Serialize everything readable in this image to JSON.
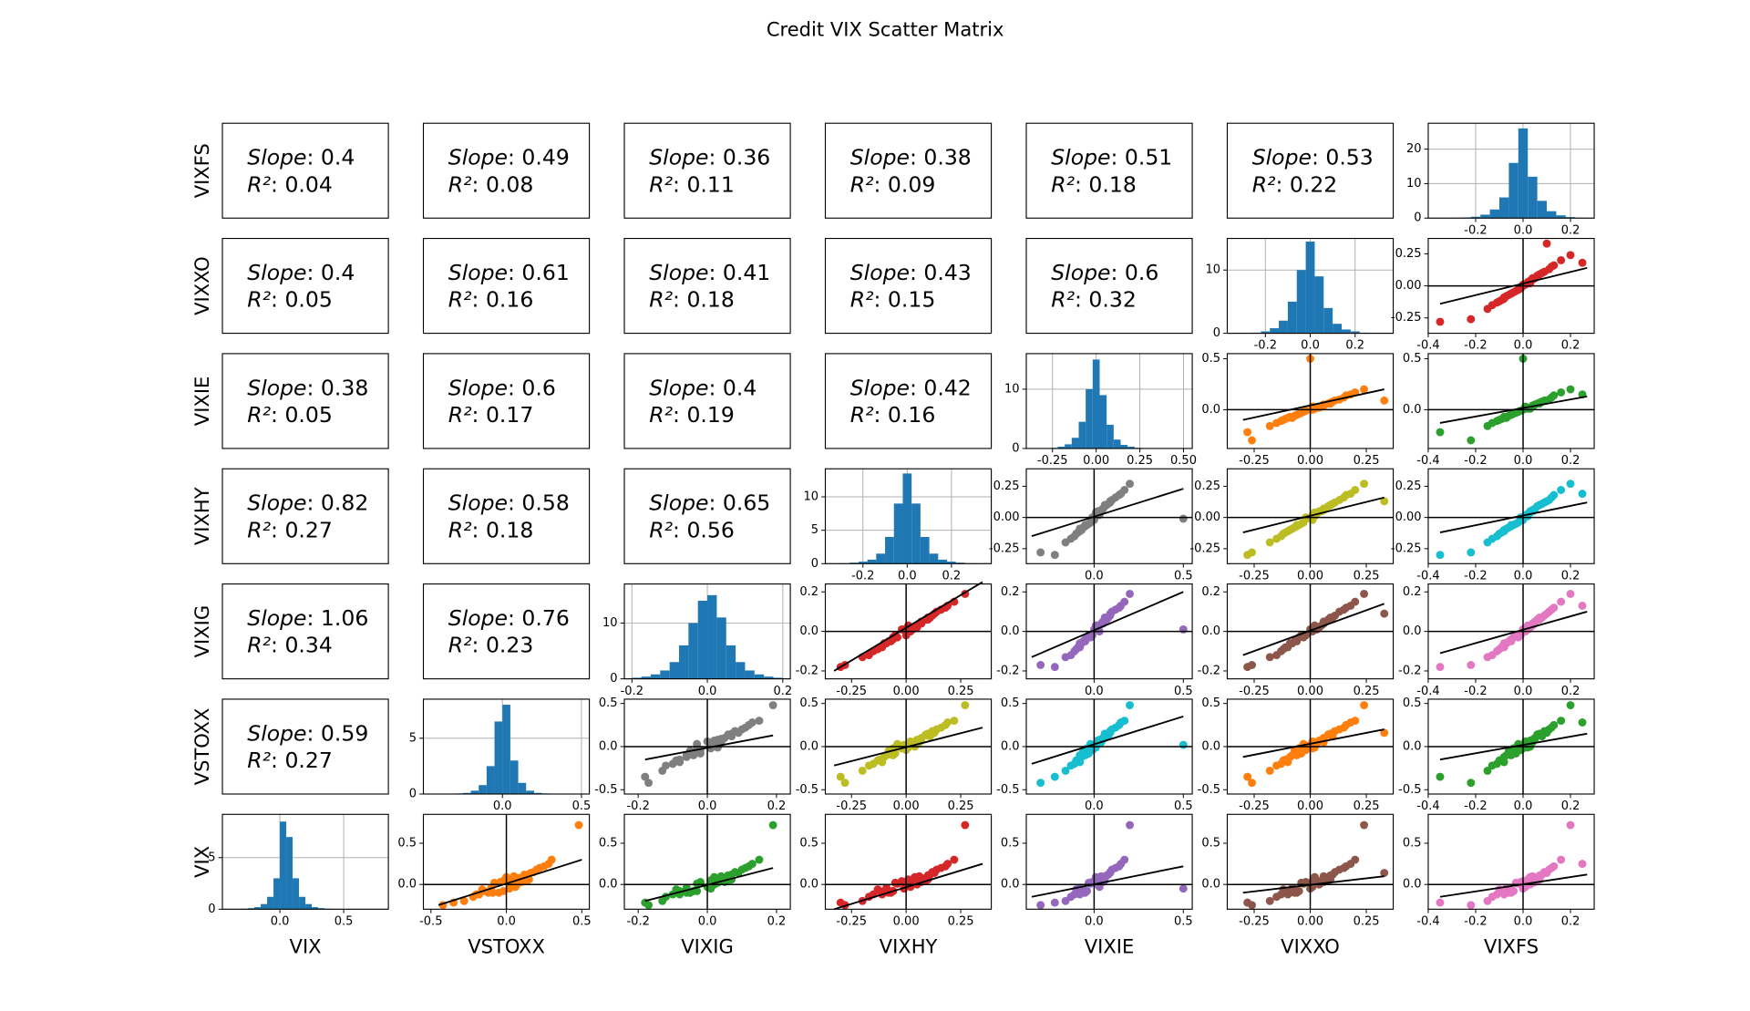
{
  "title": "Credit VIX Scatter Matrix",
  "variables": [
    "VIX",
    "VSTOXX",
    "VIXIG",
    "VIXHY",
    "VIXIE",
    "VIXXO",
    "VIXFS"
  ],
  "stat_text": {
    "slope": "Slope",
    "r2": "R²",
    "sep": ": "
  },
  "reference_lines": {
    "x": 0,
    "y": 0
  },
  "axes": [
    {
      "lim": [
        -0.3,
        0.85
      ],
      "ticks": [
        {
          "value": 0,
          "label": "0.0"
        },
        0.5
      ]
    },
    {
      "lim": [
        -0.55,
        0.55
      ],
      "ticks": [
        -0.5,
        {
          "value": 0,
          "label": "0.0"
        },
        0.5
      ]
    },
    {
      "lim": [
        -0.24,
        0.24
      ],
      "ticks": [
        -0.2,
        {
          "value": 0,
          "label": "0.0"
        },
        0.2
      ]
    },
    {
      "lim": [
        -0.37,
        0.39
      ],
      "ticks": [
        -0.25,
        {
          "value": 0,
          "label": "0.00"
        },
        0.25
      ]
    },
    {
      "lim": [
        -0.38,
        0.55
      ],
      "ticks": [
        {
          "value": 0,
          "label": "0.0"
        },
        0.5
      ]
    },
    {
      "lim": [
        -0.37,
        0.37
      ],
      "ticks": [
        -0.25,
        {
          "value": 0,
          "label": "0.00"
        },
        0.25
      ]
    },
    {
      "lim": [
        -0.4,
        0.3
      ],
      "ticks": [
        -0.4,
        -0.2,
        {
          "value": 0,
          "label": "0.0"
        },
        0.2
      ]
    }
  ],
  "data": [
    [
      0.05,
      -0.08,
      0.15,
      -0.12,
      0.02,
      0.04,
      0.22,
      -0.1,
      0.03,
      0.01,
      0.18,
      -0.2,
      0.09,
      0.06,
      -0.1,
      -0.03,
      -0.08,
      0.3,
      0.02,
      0.1,
      0.12,
      -0.25,
      0.05,
      0.03,
      0.2,
      -0.04,
      -0.05,
      0.14,
      -0.08,
      0.72,
      -0.12,
      0.08,
      -0.15,
      0.0,
      0.25,
      -0.06,
      0.06,
      -0.1,
      0.11,
      -0.22
    ],
    [
      0.04,
      -0.1,
      0.18,
      -0.2,
      0.08,
      -0.02,
      0.25,
      -0.12,
      0.1,
      0.03,
      0.2,
      -0.28,
      0.0,
      0.15,
      -0.05,
      0.06,
      -0.15,
      0.3,
      -0.08,
      0.05,
      0.12,
      -0.42,
      0.14,
      -0.04,
      0.22,
      -0.1,
      0.02,
      0.16,
      -0.02,
      0.48,
      -0.18,
      0.09,
      -0.22,
      0.07,
      0.28,
      -0.16,
      -0.01,
      -0.09,
      0.13,
      -0.35
    ],
    [
      0.01,
      -0.04,
      0.08,
      -0.1,
      0.03,
      0.01,
      0.12,
      -0.06,
      0.05,
      -0.03,
      0.1,
      -0.13,
      0.02,
      0.07,
      -0.05,
      0.0,
      -0.08,
      0.15,
      -0.02,
      0.04,
      0.07,
      -0.17,
      0.06,
      -0.02,
      0.11,
      -0.06,
      0.01,
      0.09,
      -0.03,
      0.19,
      -0.08,
      0.04,
      -0.12,
      0.02,
      0.13,
      -0.09,
      0.03,
      -0.05,
      0.06,
      -0.18
    ],
    [
      0.03,
      -0.06,
      0.12,
      -0.15,
      0.05,
      -0.02,
      0.18,
      -0.1,
      0.07,
      -0.04,
      0.14,
      -0.2,
      0.04,
      0.1,
      -0.08,
      0.02,
      -0.12,
      0.22,
      -0.05,
      0.06,
      0.11,
      -0.28,
      0.09,
      0.0,
      0.16,
      -0.09,
      -0.01,
      0.13,
      -0.06,
      0.27,
      -0.11,
      0.07,
      -0.17,
      0.05,
      0.19,
      -0.13,
      0.01,
      -0.07,
      0.1,
      -0.3
    ],
    [
      0.02,
      -0.05,
      0.09,
      -0.11,
      0.03,
      0.0,
      0.14,
      -0.07,
      0.05,
      -0.02,
      0.1,
      -0.16,
      0.01,
      0.06,
      -0.06,
      0.03,
      -0.09,
      0.17,
      -0.03,
      0.04,
      0.08,
      -0.3,
      0.06,
      -0.01,
      0.12,
      -0.08,
      0.5,
      0.09,
      -0.04,
      0.2,
      -0.08,
      0.05,
      -0.13,
      0.02,
      0.15,
      -0.1,
      0.01,
      -0.05,
      0.07,
      -0.22
    ],
    [
      0.03,
      -0.06,
      0.11,
      -0.13,
      0.05,
      0.01,
      0.16,
      -0.09,
      0.06,
      -0.03,
      0.13,
      -0.18,
      0.02,
      0.09,
      -0.07,
      0.01,
      -0.11,
      0.2,
      -0.04,
      0.06,
      0.1,
      -0.26,
      0.08,
      -0.02,
      0.15,
      -0.08,
      0.0,
      0.33,
      -0.05,
      0.24,
      -0.1,
      0.06,
      -0.15,
      0.04,
      0.18,
      -0.12,
      0.02,
      -0.06,
      0.09,
      -0.28
    ],
    [
      0.02,
      -0.05,
      0.09,
      -0.11,
      0.04,
      0.0,
      0.13,
      -0.08,
      0.05,
      -0.02,
      0.11,
      -0.15,
      0.03,
      0.07,
      -0.06,
      0.01,
      -0.09,
      0.16,
      -0.03,
      0.04,
      0.08,
      -0.22,
      0.06,
      -0.01,
      0.12,
      -0.07,
      0.0,
      0.1,
      -0.04,
      0.2,
      -0.08,
      0.05,
      -0.13,
      0.03,
      0.25,
      -0.1,
      0.02,
      -0.05,
      0.07,
      -0.35
    ]
  ],
  "chart_data": [
    [
      {
        "type": "text",
        "color": "#e377c2",
        "slope": 0.4,
        "r2": 0.04
      },
      {
        "type": "text",
        "color": "#2ca02c",
        "slope": 0.49,
        "r2": 0.08
      },
      {
        "type": "text",
        "color": "#e377c2",
        "slope": 0.36,
        "r2": 0.11
      },
      {
        "type": "text",
        "color": "#17becf",
        "slope": 0.38,
        "r2": 0.09
      },
      {
        "type": "text",
        "color": "#2ca02c",
        "slope": 0.51,
        "r2": 0.18
      },
      {
        "type": "text",
        "color": "#d62728",
        "slope": 0.53,
        "r2": 0.22
      },
      {
        "type": "histogram",
        "color": "#1f77b4",
        "grid": true,
        "bins": [
          -0.3,
          -0.26,
          -0.22,
          -0.18,
          -0.14,
          -0.1,
          -0.06,
          -0.02,
          0.02,
          0.06,
          0.1,
          0.14,
          0.18,
          0.22,
          0.26
        ],
        "counts": [
          0.1,
          0.2,
          0.4,
          1,
          2.5,
          6,
          16,
          26,
          12,
          5,
          2,
          0.8,
          0.3,
          0.1
        ],
        "xlim": [
          -0.4,
          0.3
        ],
        "xticks": [
          -0.2,
          {
            "value": 0,
            "label": "0.0"
          },
          0.2
        ],
        "ylim": [
          0,
          27.5
        ],
        "yticks": [
          0,
          10,
          20
        ]
      }
    ],
    [
      {
        "type": "text",
        "color": "#8c564b",
        "slope": 0.4,
        "r2": 0.05
      },
      {
        "type": "text",
        "color": "#ff7f0e",
        "slope": 0.61,
        "r2": 0.16
      },
      {
        "type": "text",
        "color": "#8c564b",
        "slope": 0.41,
        "r2": 0.18
      },
      {
        "type": "text",
        "color": "#bcbd22",
        "slope": 0.43,
        "r2": 0.15
      },
      {
        "type": "text",
        "color": "#ff7f0e",
        "slope": 0.6,
        "r2": 0.32
      },
      {
        "type": "histogram",
        "color": "#1f77b4",
        "grid": true,
        "bins": [
          -0.3,
          -0.26,
          -0.22,
          -0.18,
          -0.14,
          -0.1,
          -0.06,
          -0.02,
          0.02,
          0.06,
          0.1,
          0.14,
          0.18,
          0.22,
          0.26,
          0.3
        ],
        "counts": [
          0.05,
          0.1,
          0.3,
          0.8,
          2,
          5,
          10,
          14.5,
          9,
          4,
          1.5,
          0.6,
          0.3,
          0.1,
          0.05
        ],
        "xlim": [
          -0.37,
          0.37
        ],
        "xticks": [
          -0.2,
          {
            "value": 0,
            "label": "0.0"
          },
          0.2
        ],
        "ylim": [
          0,
          15
        ],
        "yticks": [
          0,
          10
        ]
      },
      {
        "type": "scatter",
        "color": "#d62728",
        "fit": {
          "x": [
            -0.35,
            0.27
          ],
          "y": [
            -0.14,
            0.14
          ]
        }
      }
    ],
    [
      {
        "type": "text",
        "color": "#9467bd",
        "slope": 0.38,
        "r2": 0.05
      },
      {
        "type": "text",
        "color": "#17becf",
        "slope": 0.6,
        "r2": 0.17
      },
      {
        "type": "text",
        "color": "#9467bd",
        "slope": 0.4,
        "r2": 0.19
      },
      {
        "type": "text",
        "color": "#7f7f7f",
        "slope": 0.42,
        "r2": 0.16
      },
      {
        "type": "histogram",
        "color": "#1f77b4",
        "grid": true,
        "bins": [
          -0.3,
          -0.26,
          -0.22,
          -0.18,
          -0.14,
          -0.1,
          -0.06,
          -0.02,
          0.02,
          0.06,
          0.1,
          0.14,
          0.18,
          0.22,
          0.26,
          0.3
        ],
        "counts": [
          0.05,
          0.1,
          0.3,
          0.7,
          1.8,
          4.5,
          10,
          15,
          9,
          4,
          1.5,
          0.6,
          0.3,
          0.1,
          0.05
        ],
        "xlim": [
          -0.4,
          0.55
        ],
        "xticks": [
          -0.25,
          {
            "value": 0,
            "label": "0.00"
          },
          0.25,
          {
            "value": 0.5,
            "label": "0.50"
          }
        ],
        "ylim": [
          0,
          16
        ],
        "yticks": [
          0,
          10
        ]
      },
      {
        "type": "scatter",
        "color": "#ff7f0e",
        "fit": {
          "x": [
            -0.3,
            0.33
          ],
          "y": [
            -0.1,
            0.2
          ]
        }
      },
      {
        "type": "scatter",
        "color": "#2ca02c",
        "fit": {
          "x": [
            -0.35,
            0.27
          ],
          "y": [
            -0.13,
            0.13
          ]
        }
      }
    ],
    [
      {
        "type": "text",
        "color": "#d62728",
        "slope": 0.82,
        "r2": 0.27
      },
      {
        "type": "text",
        "color": "#bcbd22",
        "slope": 0.58,
        "r2": 0.18
      },
      {
        "type": "text",
        "color": "#d62728",
        "slope": 0.65,
        "r2": 0.56
      },
      {
        "type": "histogram",
        "color": "#1f77b4",
        "grid": true,
        "bins": [
          -0.3,
          -0.26,
          -0.22,
          -0.18,
          -0.14,
          -0.1,
          -0.06,
          -0.02,
          0.02,
          0.06,
          0.1,
          0.14,
          0.18,
          0.22,
          0.26,
          0.3
        ],
        "counts": [
          0.05,
          0.15,
          0.3,
          0.6,
          1.5,
          4,
          9,
          13.5,
          9,
          4,
          1.5,
          0.6,
          0.3,
          0.15,
          0.05
        ],
        "xlim": [
          -0.37,
          0.38
        ],
        "xticks": [
          -0.2,
          {
            "value": 0,
            "label": "0.0"
          },
          0.2
        ],
        "ylim": [
          0,
          14.2
        ],
        "yticks": [
          0,
          5,
          10
        ]
      },
      {
        "type": "scatter",
        "color": "#7f7f7f",
        "fit": {
          "x": [
            -0.35,
            0.5
          ],
          "y": [
            -0.15,
            0.23
          ]
        }
      },
      {
        "type": "scatter",
        "color": "#bcbd22",
        "fit": {
          "x": [
            -0.3,
            0.33
          ],
          "y": [
            -0.12,
            0.16
          ]
        }
      },
      {
        "type": "scatter",
        "color": "#17becf",
        "fit": {
          "x": [
            -0.35,
            0.27
          ],
          "y": [
            -0.12,
            0.12
          ]
        }
      }
    ],
    [
      {
        "type": "text",
        "color": "#2ca02c",
        "slope": 1.06,
        "r2": 0.34
      },
      {
        "type": "text",
        "color": "#7f7f7f",
        "slope": 0.76,
        "r2": 0.23
      },
      {
        "type": "histogram",
        "color": "#1f77b4",
        "grid": true,
        "bins": [
          -0.2,
          -0.175,
          -0.15,
          -0.125,
          -0.1,
          -0.075,
          -0.05,
          -0.025,
          0,
          0.025,
          0.05,
          0.075,
          0.1,
          0.125,
          0.15,
          0.175,
          0.2
        ],
        "counts": [
          0.2,
          0.4,
          0.8,
          1.5,
          3,
          6,
          10,
          14,
          15,
          11,
          6,
          3,
          1.5,
          0.8,
          0.4,
          0.2
        ],
        "xlim": [
          -0.22,
          0.22
        ],
        "xticks": [
          -0.2,
          {
            "value": 0,
            "label": "0.0"
          },
          0.2
        ],
        "ylim": [
          0,
          17
        ],
        "yticks": [
          0,
          10
        ]
      },
      {
        "type": "scatter",
        "color": "#d62728",
        "fit": {
          "x": [
            -0.33,
            0.35
          ],
          "y": [
            -0.2,
            0.25
          ]
        }
      },
      {
        "type": "scatter",
        "color": "#9467bd",
        "fit": {
          "x": [
            -0.35,
            0.5
          ],
          "y": [
            -0.13,
            0.2
          ]
        }
      },
      {
        "type": "scatter",
        "color": "#8c564b",
        "fit": {
          "x": [
            -0.3,
            0.33
          ],
          "y": [
            -0.12,
            0.14
          ]
        }
      },
      {
        "type": "scatter",
        "color": "#e377c2",
        "fit": {
          "x": [
            -0.35,
            0.27
          ],
          "y": [
            -0.11,
            0.1
          ]
        }
      }
    ],
    [
      {
        "type": "text",
        "color": "#ff7f0e",
        "slope": 0.59,
        "r2": 0.27
      },
      {
        "type": "histogram",
        "color": "#1f77b4",
        "grid": true,
        "bins": [
          -0.3,
          -0.25,
          -0.2,
          -0.15,
          -0.1,
          -0.05,
          0,
          0.05,
          0.1,
          0.15,
          0.2,
          0.25,
          0.3
        ],
        "counts": [
          0.05,
          0.1,
          0.3,
          0.8,
          2.5,
          6.5,
          8,
          3,
          1,
          0.3,
          0.1,
          0.05
        ],
        "xlim": [
          -0.5,
          0.55
        ],
        "xticks": [
          {
            "value": 0,
            "label": "0.0"
          },
          0.5
        ],
        "ylim": [
          0,
          8.5
        ],
        "yticks": [
          0,
          5
        ]
      },
      {
        "type": "scatter",
        "color": "#7f7f7f",
        "fit": {
          "x": [
            -0.18,
            0.19
          ],
          "y": [
            -0.15,
            0.13
          ]
        }
      },
      {
        "type": "scatter",
        "color": "#bcbd22",
        "fit": {
          "x": [
            -0.33,
            0.35
          ],
          "y": [
            -0.22,
            0.22
          ]
        }
      },
      {
        "type": "scatter",
        "color": "#17becf",
        "fit": {
          "x": [
            -0.35,
            0.5
          ],
          "y": [
            -0.2,
            0.35
          ]
        }
      },
      {
        "type": "scatter",
        "color": "#ff7f0e",
        "fit": {
          "x": [
            -0.3,
            0.33
          ],
          "y": [
            -0.12,
            0.2
          ]
        }
      },
      {
        "type": "scatter",
        "color": "#2ca02c",
        "fit": {
          "x": [
            -0.35,
            0.27
          ],
          "y": [
            -0.15,
            0.15
          ]
        }
      }
    ],
    [
      {
        "type": "histogram",
        "color": "#1f77b4",
        "grid": true,
        "bins": [
          -0.3,
          -0.25,
          -0.2,
          -0.15,
          -0.1,
          -0.05,
          0,
          0.05,
          0.1,
          0.15,
          0.2,
          0.25,
          0.3,
          0.35,
          0.4
        ],
        "counts": [
          0.05,
          0.1,
          0.2,
          0.5,
          1.2,
          3,
          8.5,
          7,
          3,
          1.2,
          0.5,
          0.2,
          0.1,
          0.05
        ],
        "xlim": [
          -0.45,
          0.85
        ],
        "xticks": [
          {
            "value": 0,
            "label": "0.0"
          },
          0.5
        ],
        "ylim": [
          0,
          9.2
        ],
        "yticks": [
          0,
          5
        ]
      },
      {
        "type": "scatter",
        "color": "#ff7f0e",
        "fit": {
          "x": [
            -0.45,
            0.5
          ],
          "y": [
            -0.25,
            0.3
          ]
        }
      },
      {
        "type": "scatter",
        "color": "#2ca02c",
        "fit": {
          "x": [
            -0.18,
            0.19
          ],
          "y": [
            -0.2,
            0.2
          ]
        }
      },
      {
        "type": "scatter",
        "color": "#d62728",
        "fit": {
          "x": [
            -0.33,
            0.35
          ],
          "y": [
            -0.3,
            0.25
          ]
        }
      },
      {
        "type": "scatter",
        "color": "#9467bd",
        "fit": {
          "x": [
            -0.35,
            0.5
          ],
          "y": [
            -0.15,
            0.22
          ]
        }
      },
      {
        "type": "scatter",
        "color": "#8c564b",
        "fit": {
          "x": [
            -0.3,
            0.33
          ],
          "y": [
            -0.1,
            0.1
          ]
        }
      },
      {
        "type": "scatter",
        "color": "#e377c2",
        "fit": {
          "x": [
            -0.35,
            0.27
          ],
          "y": [
            -0.15,
            0.12
          ]
        }
      }
    ]
  ]
}
